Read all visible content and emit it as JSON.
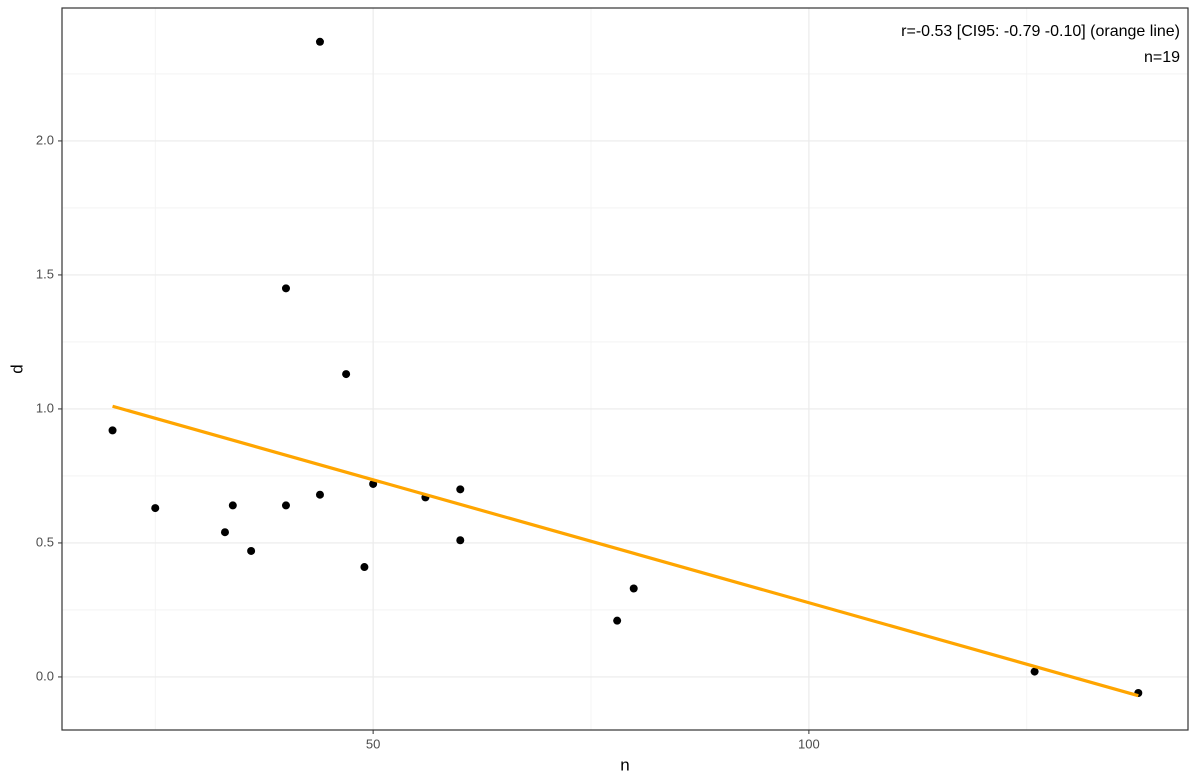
{
  "chart_data": {
    "type": "scatter",
    "annotations": [
      "r=-0.53 [CI95: -0.79 -0.10] (orange line)",
      "n=19"
    ],
    "xlabel": "n",
    "ylabel": "d",
    "x": [
      20.1,
      25.0,
      33.0,
      33.9,
      36.0,
      40.0,
      40.0,
      43.9,
      43.9,
      46.9,
      49.0,
      50.0,
      56.0,
      60.0,
      60.0,
      78.0,
      79.9,
      125.9,
      137.8
    ],
    "values": [
      0.92,
      0.63,
      0.54,
      0.64,
      0.47,
      0.64,
      1.45,
      2.37,
      0.68,
      1.13,
      0.41,
      0.72,
      0.67,
      0.7,
      0.51,
      0.21,
      0.33,
      0.02,
      -0.06
    ],
    "color": "#000000",
    "fit": {
      "x": [
        20.1,
        137.8
      ],
      "values": [
        1.01,
        -0.07
      ],
      "color": "#ffa500"
    },
    "xlim": [
      14.3,
      143.5
    ],
    "ylim": [
      -0.198,
      2.496
    ],
    "xticks": [
      50,
      100
    ],
    "xminor": [
      25,
      75,
      125
    ],
    "yticks": [
      {
        "value": 0,
        "label": "0.0"
      },
      {
        "value": 0.5,
        "label": "0.5"
      },
      {
        "value": 1,
        "label": "1.0"
      },
      {
        "value": 1.5,
        "label": "1.5"
      },
      {
        "value": 2,
        "label": "2.0"
      }
    ],
    "yminor": [
      0.25,
      0.75,
      1.25,
      1.75,
      2.25
    ],
    "grid": true
  }
}
